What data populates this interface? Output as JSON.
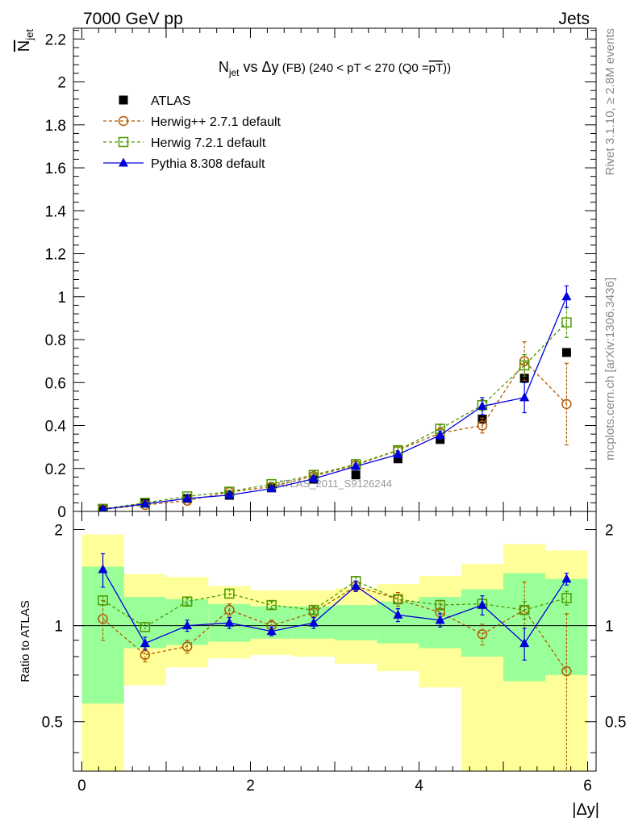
{
  "header": {
    "left": "7000 GeV pp",
    "right": "Jets"
  },
  "side_labels": {
    "rivet": "Rivet 3.1.10, ≥ 2.8M events",
    "mcplots": "mcplots.cern.ch [arXiv:1306.3436]"
  },
  "watermark": "ATLAS_2011_S9126244",
  "chart_data": [
    {
      "type": "scatter",
      "title": {
        "n": "N",
        "n_sub": "jet",
        "vs": " vs Δy",
        "fb": " (FB)",
        "cut": " (240 < pT < 270 (Q0 =",
        "over": "pT",
        "close": "))"
      },
      "ylabel": {
        "n": "N",
        "n_sub": "jet"
      },
      "xlim": [
        -0.1,
        6.1
      ],
      "ylim": [
        0,
        2.25
      ],
      "yticks": [
        "0",
        "0.2",
        "0.4",
        "0.6",
        "0.8",
        "1",
        "1.2",
        "1.4",
        "1.6",
        "1.8",
        "2",
        "2.2"
      ],
      "x": [
        0.25,
        0.75,
        1.25,
        1.75,
        2.25,
        2.75,
        3.25,
        3.75,
        4.25,
        4.75,
        5.25,
        5.75
      ],
      "legend_position": "top-left",
      "series": [
        {
          "name": "ATLAS",
          "color": "#000000",
          "marker": "square-filled",
          "values": [
            0.01,
            0.04,
            0.06,
            0.075,
            0.11,
            0.15,
            0.17,
            0.245,
            0.335,
            0.43,
            0.62,
            0.74
          ]
        },
        {
          "name": "Herwig++ 2.7.1 default",
          "color": "#b35900",
          "marker": "circle-open",
          "dashed": true,
          "values": [
            0.01,
            0.03,
            0.05,
            0.09,
            0.115,
            0.165,
            0.215,
            0.285,
            0.365,
            0.4,
            0.7,
            0.5
          ],
          "errors": [
            0.003,
            0.005,
            0.006,
            0.008,
            0.01,
            0.012,
            0.015,
            0.02,
            0.025,
            0.035,
            0.09,
            0.19
          ]
        },
        {
          "name": "Herwig 7.2.1 default",
          "color": "#4d9900",
          "marker": "square-open",
          "dashed": true,
          "values": [
            0.012,
            0.04,
            0.07,
            0.092,
            0.127,
            0.17,
            0.22,
            0.285,
            0.385,
            0.495,
            0.68,
            0.88
          ],
          "errors": [
            0.002,
            0.004,
            0.005,
            0.006,
            0.008,
            0.009,
            0.012,
            0.014,
            0.018,
            0.025,
            0.05,
            0.07
          ]
        },
        {
          "name": "Pythia 8.308 default",
          "color": "#0000dd",
          "marker": "triangle-filled",
          "dashed": false,
          "values": [
            0.01,
            0.035,
            0.06,
            0.076,
            0.106,
            0.152,
            0.21,
            0.265,
            0.355,
            0.49,
            0.53,
            1.0
          ],
          "errors": [
            0.002,
            0.004,
            0.005,
            0.006,
            0.008,
            0.01,
            0.012,
            0.015,
            0.02,
            0.04,
            0.07,
            0.05
          ]
        }
      ]
    },
    {
      "type": "scatter",
      "ylabel": "Ratio to ATLAS",
      "xlabel": "|Δy|",
      "xlim": [
        -0.1,
        6.1
      ],
      "ylim": [
        0.35,
        2.28
      ],
      "yticks": [
        "0.5",
        "1",
        "2"
      ],
      "xticks": [
        "0",
        "2",
        "4",
        "6"
      ],
      "x": [
        0.25,
        0.75,
        1.25,
        1.75,
        2.25,
        2.75,
        3.25,
        3.75,
        4.25,
        4.75,
        5.25,
        5.75
      ],
      "bins": [
        [
          0,
          0.5
        ],
        [
          0.5,
          1
        ],
        [
          1,
          1.5
        ],
        [
          1.5,
          2
        ],
        [
          2,
          2.5
        ],
        [
          2.5,
          3
        ],
        [
          3,
          3.5
        ],
        [
          3.5,
          4
        ],
        [
          4,
          4.5
        ],
        [
          4.5,
          5
        ],
        [
          5,
          5.5
        ],
        [
          5.5,
          6
        ]
      ],
      "band_colors": {
        "outer": "#ffff99",
        "inner": "#99ff99"
      },
      "outer_band": [
        [
          0.35,
          1.93
        ],
        [
          0.65,
          1.45
        ],
        [
          0.74,
          1.42
        ],
        [
          0.79,
          1.33
        ],
        [
          0.81,
          1.29
        ],
        [
          0.8,
          1.29
        ],
        [
          0.76,
          1.31
        ],
        [
          0.72,
          1.35
        ],
        [
          0.64,
          1.43
        ],
        [
          0.35,
          1.56
        ],
        [
          0.35,
          1.8
        ],
        [
          0.35,
          1.72
        ]
      ],
      "inner_band": [
        [
          0.57,
          1.53
        ],
        [
          0.85,
          1.23
        ],
        [
          0.87,
          1.21
        ],
        [
          0.89,
          1.17
        ],
        [
          0.91,
          1.15
        ],
        [
          0.91,
          1.15
        ],
        [
          0.9,
          1.16
        ],
        [
          0.88,
          1.19
        ],
        [
          0.85,
          1.23
        ],
        [
          0.8,
          1.3
        ],
        [
          0.67,
          1.46
        ],
        [
          0.7,
          1.4
        ]
      ],
      "reference": 1,
      "series": [
        {
          "name": "Herwig++ 2.7.1 default",
          "color": "#b35900",
          "marker": "circle-open",
          "dashed": true,
          "values": [
            1.05,
            0.81,
            0.86,
            1.12,
            1.0,
            1.1,
            1.33,
            1.21,
            1.1,
            0.94,
            1.12,
            0.72
          ],
          "errors": [
            0.15,
            0.04,
            0.04,
            0.05,
            0.04,
            0.04,
            0.05,
            0.06,
            0.07,
            0.07,
            0.25,
            0.37
          ]
        },
        {
          "name": "Herwig 7.2.1 default",
          "color": "#4d9900",
          "marker": "square-open",
          "dashed": true,
          "values": [
            1.2,
            0.99,
            1.19,
            1.26,
            1.16,
            1.12,
            1.38,
            1.21,
            1.16,
            1.17,
            1.12,
            1.22
          ],
          "errors": [
            0.04,
            0.03,
            0.03,
            0.04,
            0.03,
            0.03,
            0.04,
            0.04,
            0.04,
            0.04,
            0.07,
            0.06
          ]
        },
        {
          "name": "Pythia 8.308 default",
          "color": "#0000dd",
          "marker": "triangle-filled",
          "dashed": false,
          "values": [
            1.5,
            0.88,
            1.0,
            1.02,
            0.96,
            1.02,
            1.33,
            1.08,
            1.04,
            1.16,
            0.88,
            1.4
          ],
          "errors": [
            0.18,
            0.04,
            0.04,
            0.04,
            0.03,
            0.04,
            0.05,
            0.05,
            0.05,
            0.08,
            0.1,
            0.06
          ]
        }
      ]
    }
  ]
}
